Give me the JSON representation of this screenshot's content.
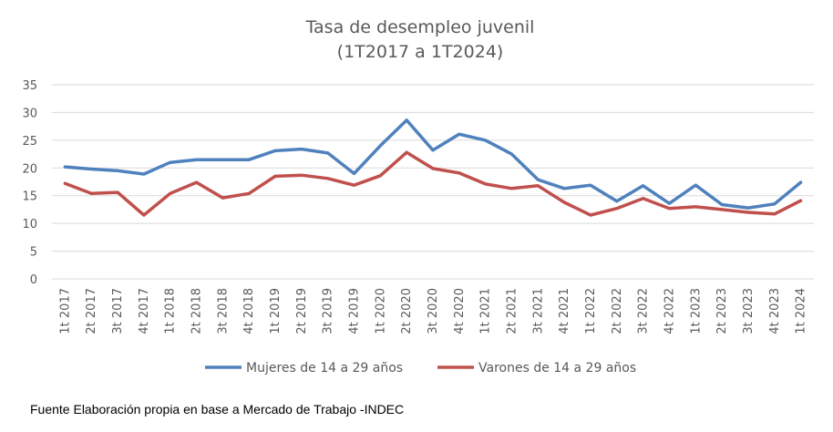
{
  "chart_data": {
    "type": "line",
    "title": "Tasa de desempleo juvenil",
    "subtitle": "(1T2017 a 1T2024)",
    "xlabel": "",
    "ylabel": "",
    "ylim": [
      0,
      35
    ],
    "yticks": [
      0,
      5,
      10,
      15,
      20,
      25,
      30,
      35
    ],
    "grid": true,
    "legend_position": "bottom",
    "categories": [
      "1t 2017",
      "2t 2017",
      "3t 2017",
      "4t 2017",
      "1t 2018",
      "2t 2018",
      "3t 2018",
      "4t 2018",
      "1t 2019",
      "2t 2019",
      "3t 2019",
      "4t 2019",
      "1t 2020",
      "2t 2020",
      "3t 2020",
      "4t 2020",
      "1t 2021",
      "2t 2021",
      "3t 2021",
      "4t 2021",
      "1t 2022",
      "2t 2022",
      "3t 2022",
      "4t 2022",
      "1t 2023",
      "2t 2023",
      "3t 2023",
      "4t 2023",
      "1t 2024"
    ],
    "series": [
      {
        "name": "Mujeres de 14 a 29 años",
        "color": "#4F81BD",
        "values": [
          20.2,
          19.8,
          19.5,
          18.9,
          21.0,
          21.5,
          21.5,
          21.5,
          23.1,
          23.4,
          22.7,
          19.0,
          24.0,
          28.6,
          23.2,
          26.1,
          25.0,
          22.5,
          17.9,
          16.3,
          16.9,
          14.0,
          16.8,
          13.6,
          16.9,
          13.4,
          12.8,
          13.5,
          17.4
        ]
      },
      {
        "name": "Varones de 14 a 29 años",
        "color": "#C0504D",
        "values": [
          17.2,
          15.4,
          15.6,
          11.5,
          15.4,
          17.4,
          14.6,
          15.4,
          18.5,
          18.7,
          18.1,
          16.9,
          18.6,
          22.8,
          19.9,
          19.1,
          17.1,
          16.3,
          16.8,
          13.8,
          11.5,
          12.7,
          14.5,
          12.7,
          13.0,
          12.5,
          12.0,
          11.7,
          14.1
        ]
      }
    ]
  },
  "source": "Fuente Elaboración propia en base a Mercado de Trabajo -INDEC"
}
